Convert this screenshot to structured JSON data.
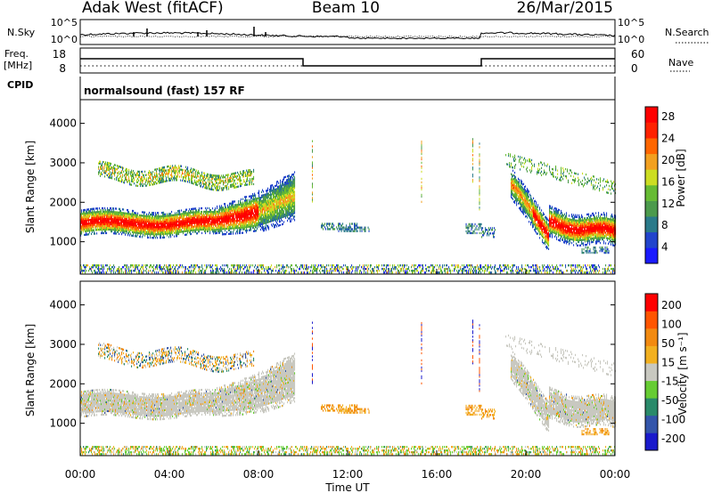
{
  "header": {
    "station": "Adak West (fitACF)",
    "beam": "Beam 10",
    "date": "26/Mar/2015"
  },
  "top_panels": {
    "nsky_label": "N.Sky",
    "nsky_ticks": [
      "10^5",
      "10^0"
    ],
    "nsearch_label": "N.Search",
    "freq_label_line1": "Freq.",
    "freq_label_line2": "[MHz]",
    "freq_ticks": [
      "18",
      "8"
    ],
    "nave_ticks": [
      "60",
      "0"
    ],
    "nave_label": "Nave",
    "cpid_label": "CPID",
    "cpid_text": "normalsound (fast) 157 RF"
  },
  "chart_data": [
    {
      "type": "heatmap",
      "title": "",
      "ylabel": "Slant Range [km]",
      "ylim": [
        180,
        4600
      ],
      "yticks": [
        "1000",
        "2000",
        "3000",
        "4000"
      ],
      "xlim": [
        "00:00",
        "24:00"
      ],
      "colorbar": {
        "label": "Power [dB]",
        "ticks": [
          "4",
          "8",
          "12",
          "16",
          "20",
          "24",
          "28"
        ],
        "colors": [
          "#1a1aff",
          "#2244cc",
          "#2a7a8a",
          "#4c9a4c",
          "#66bb33",
          "#ccdd22",
          "#f2a020",
          "#ff6600",
          "#ff2200",
          "#ff0000"
        ]
      }
    },
    {
      "type": "heatmap",
      "title": "",
      "ylabel": "Slant Range [km]",
      "ylim": [
        180,
        4600
      ],
      "yticks": [
        "1000",
        "2000",
        "3000",
        "4000"
      ],
      "xlim": [
        "00:00",
        "24:00"
      ],
      "xlabel": "Time UT",
      "xticks": [
        "00:00",
        "04:00",
        "08:00",
        "12:00",
        "16:00",
        "20:00",
        "00:00"
      ],
      "colorbar": {
        "label": "Velocity [m s⁻¹]",
        "ticks": [
          "200",
          "100",
          "50",
          "15",
          "-15",
          "-50",
          "-100",
          "-200"
        ],
        "colors": [
          "#1a1acc",
          "#3355aa",
          "#2a8a6a",
          "#66cc33",
          "#c8c8c0",
          "#f2b020",
          "#f28a10",
          "#ff5500",
          "#ff0000"
        ]
      }
    }
  ]
}
